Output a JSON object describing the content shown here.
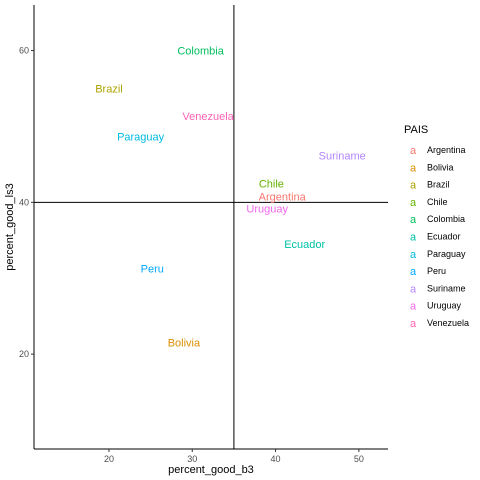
{
  "chart_data": {
    "type": "scatter",
    "title": "",
    "xlabel": "percent_good_b3",
    "ylabel": "percent_good_ls3",
    "xlim": [
      11,
      53.5
    ],
    "ylim": [
      7.5,
      66
    ],
    "x_ticks": [
      20,
      30,
      40,
      50
    ],
    "y_ticks": [
      20,
      40,
      60
    ],
    "reference_lines": {
      "vertical_x": 35,
      "horizontal_y": 40
    },
    "grid": false,
    "legend": {
      "title": "PAIS",
      "placement": "right"
    },
    "points": [
      {
        "label": "Argentina",
        "x": 40.8,
        "y": 40.8,
        "color": "#F8766D"
      },
      {
        "label": "Bolivia",
        "x": 29.0,
        "y": 21.5,
        "color": "#DB8E00"
      },
      {
        "label": "Brazil",
        "x": 20.0,
        "y": 55.0,
        "color": "#AEA200"
      },
      {
        "label": "Chile",
        "x": 39.5,
        "y": 42.5,
        "color": "#64B200"
      },
      {
        "label": "Colombia",
        "x": 31.0,
        "y": 60.0,
        "color": "#00BD5C"
      },
      {
        "label": "Ecuador",
        "x": 43.5,
        "y": 34.5,
        "color": "#00C1A7"
      },
      {
        "label": "Paraguay",
        "x": 23.8,
        "y": 48.7,
        "color": "#00BADE"
      },
      {
        "label": "Peru",
        "x": 25.2,
        "y": 31.3,
        "color": "#00A6FF"
      },
      {
        "label": "Suriname",
        "x": 48.0,
        "y": 46.2,
        "color": "#B385FF"
      },
      {
        "label": "Uruguay",
        "x": 39.0,
        "y": 39.2,
        "color": "#EF67EB"
      },
      {
        "label": "Venezuela",
        "x": 31.9,
        "y": 51.4,
        "color": "#FF63B6"
      }
    ]
  }
}
